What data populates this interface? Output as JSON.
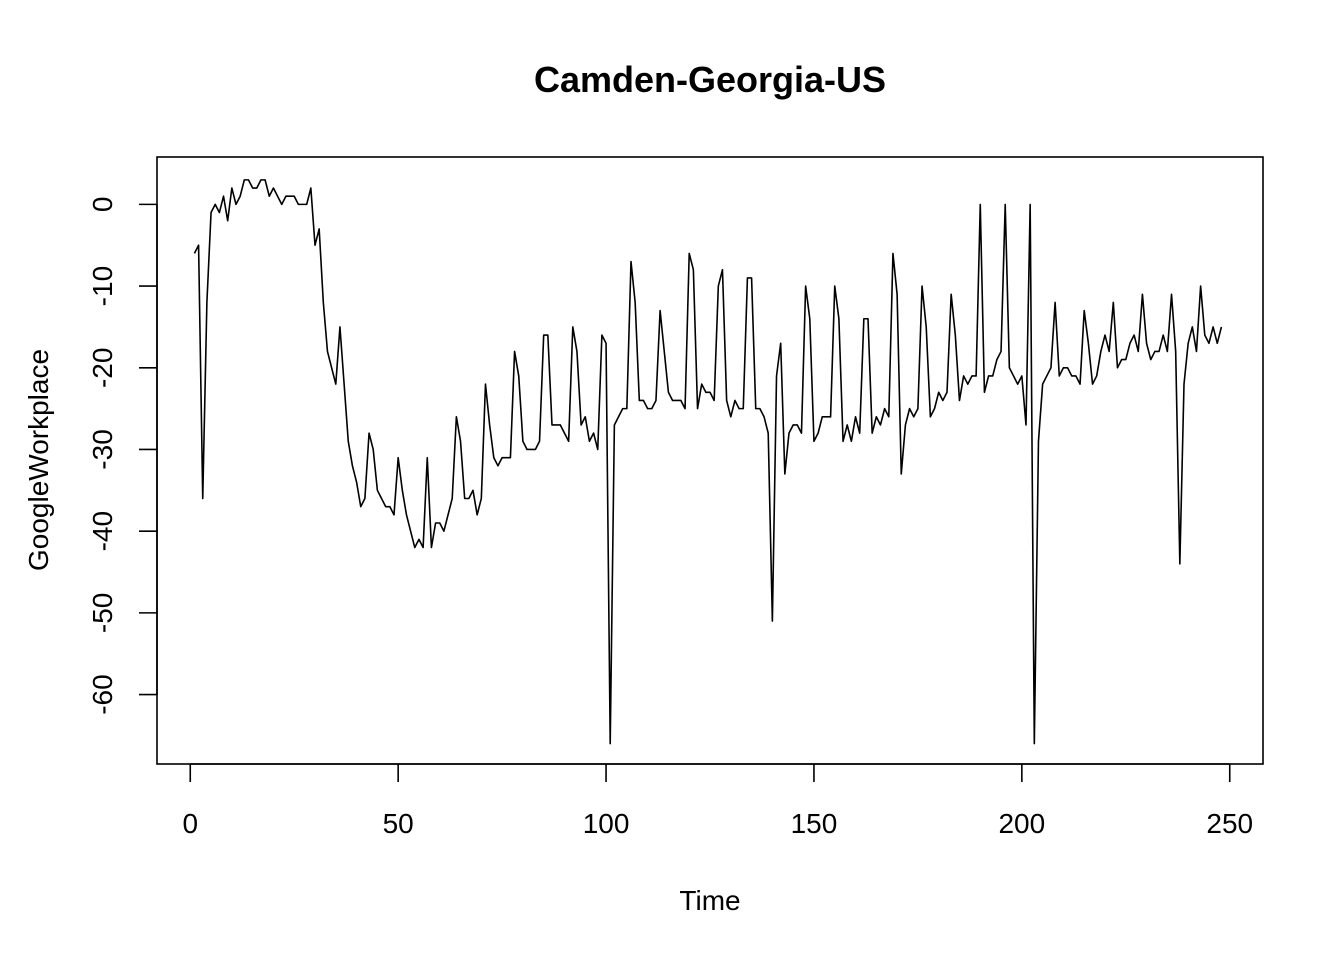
{
  "chart_data": {
    "type": "line",
    "title": "Camden-Georgia-US",
    "xlabel": "Time",
    "ylabel": "GoogleWorkplace",
    "xlim": [
      -8,
      258
    ],
    "ylim": [
      -68.5,
      5.8
    ],
    "x_ticks": [
      0,
      50,
      100,
      150,
      200,
      250
    ],
    "x_tick_labels": [
      "0",
      "50",
      "100",
      "150",
      "200",
      "250"
    ],
    "y_ticks": [
      0,
      -10,
      -20,
      -30,
      -40,
      -50,
      -60
    ],
    "y_tick_labels": [
      "0",
      "-10",
      "-20",
      "-30",
      "-40",
      "-50",
      "-60"
    ],
    "grid": false,
    "legend": "none",
    "line_color": "#000000",
    "series": [
      {
        "x_start": 1,
        "values": [
          -6,
          -5,
          -36,
          -12,
          -1,
          0,
          -1,
          1,
          -2,
          2,
          0,
          1,
          3,
          3,
          2,
          2,
          3,
          3,
          1,
          2,
          1,
          0,
          1,
          1,
          1,
          0,
          0,
          0,
          2,
          -5,
          -3,
          -12,
          -18,
          -20,
          -22,
          -15,
          -22,
          -29,
          -32,
          -34,
          -37,
          -36,
          -28,
          -30,
          -35,
          -36,
          -37,
          -37,
          -38,
          -31,
          -35,
          -38,
          -40,
          -42,
          -41,
          -42,
          -31,
          -42,
          -39,
          -39,
          -40,
          -38,
          -36,
          -26,
          -29,
          -36,
          -36,
          -35,
          -38,
          -36,
          -22,
          -27,
          -31,
          -32,
          -31,
          -31,
          -31,
          -18,
          -21,
          -29,
          -30,
          -30,
          -30,
          -29,
          -16,
          -16,
          -27,
          -27,
          -27,
          -28,
          -29,
          -15,
          -18,
          -27,
          -26,
          -29,
          -28,
          -30,
          -16,
          -17,
          -66,
          -27,
          -26,
          -25,
          -25,
          -7,
          -12,
          -24,
          -24,
          -25,
          -25,
          -24,
          -13,
          -18,
          -23,
          -24,
          -24,
          -24,
          -25,
          -6,
          -8,
          -25,
          -22,
          -23,
          -23,
          -24,
          -10,
          -8,
          -24,
          -26,
          -24,
          -25,
          -25,
          -9,
          -9,
          -25,
          -25,
          -26,
          -28,
          -51,
          -21,
          -17,
          -33,
          -28,
          -27,
          -27,
          -28,
          -10,
          -14,
          -29,
          -28,
          -26,
          -26,
          -26,
          -10,
          -14,
          -29,
          -27,
          -29,
          -26,
          -28,
          -14,
          -14,
          -28,
          -26,
          -27,
          -25,
          -26,
          -6,
          -11,
          -33,
          -27,
          -25,
          -26,
          -25,
          -10,
          -15,
          -26,
          -25,
          -23,
          -24,
          -23,
          -11,
          -16,
          -24,
          -21,
          -22,
          -21,
          -21,
          0,
          -23,
          -21,
          -21,
          -19,
          -18,
          0,
          -20,
          -21,
          -22,
          -21,
          -27,
          0,
          -66,
          -29,
          -22,
          -21,
          -20,
          -12,
          -21,
          -20,
          -20,
          -21,
          -21,
          -22,
          -13,
          -17,
          -22,
          -21,
          -18,
          -16,
          -18,
          -12,
          -20,
          -19,
          -19,
          -17,
          -16,
          -18,
          -11,
          -17,
          -19,
          -18,
          -18,
          -16,
          -18,
          -11,
          -18,
          -44,
          -22,
          -17,
          -15,
          -18,
          -10,
          -16,
          -17,
          -15,
          -17,
          -15
        ]
      }
    ]
  }
}
